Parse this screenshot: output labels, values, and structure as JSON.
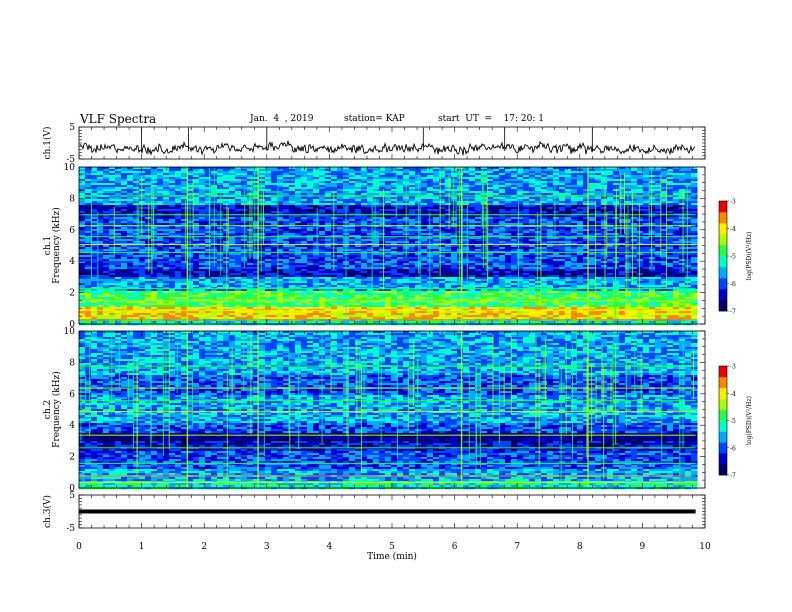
{
  "header": {
    "title": "VLF Spectra",
    "date": "Jan.  4  , 2019",
    "station": "station= KAP",
    "start_ut": "start  UT  =    17: 20: 1"
  },
  "colors": {
    "waveform": "#000000",
    "colormap": [
      "#000066",
      "#0000cc",
      "#0044ff",
      "#00aaff",
      "#00ffcc",
      "#22ff44",
      "#aaff00",
      "#ffee00",
      "#ff8800",
      "#ee0000"
    ]
  },
  "chart_data": [
    {
      "type": "line",
      "panel": "ch1-waveform",
      "ylabel": "ch.1(V)",
      "ylim": [
        -5,
        5
      ],
      "yticks": [
        5,
        -5
      ],
      "xlim": [
        0,
        10
      ],
      "description_values": {
        "y_center": -1.5,
        "y_amplitude": 2.0
      }
    },
    {
      "type": "heatmap",
      "panel": "ch1-spectrogram",
      "ylabel": "ch.1\nFrequency  (kHz)",
      "ylim": [
        0,
        10
      ],
      "yticks": [
        0,
        2,
        4,
        6,
        8,
        10
      ],
      "xlim": [
        0,
        10
      ],
      "data_end_min": 9.85,
      "colorbar": {
        "label": "log(PSD)(V²/Hz)",
        "range": [
          -7,
          -3
        ],
        "ticks": [
          "-3",
          "-4",
          "-5",
          "-6",
          "-7"
        ]
      }
    },
    {
      "type": "heatmap",
      "panel": "ch2-spectrogram",
      "ylabel": "ch.2\nFrequency  (kHz)",
      "ylim": [
        0,
        10
      ],
      "yticks": [
        0,
        2,
        4,
        6,
        8,
        10
      ],
      "xlim": [
        0,
        10
      ],
      "data_end_min": 9.85,
      "colorbar": {
        "label": "log(PSD)(V²/Hz)",
        "range": [
          -7,
          -3
        ],
        "ticks": [
          "-3",
          "-4",
          "-5",
          "-6",
          "-7"
        ]
      }
    },
    {
      "type": "line",
      "panel": "ch3-waveform",
      "ylabel": "ch.3(V)",
      "ylim": [
        -5,
        5
      ],
      "yticks": [
        5,
        -5
      ],
      "xlim": [
        0,
        10
      ],
      "constant_value": 0
    }
  ],
  "x_axis": {
    "label": "Time  (min)",
    "ticks": [
      "0",
      "1",
      "2",
      "3",
      "4",
      "5",
      "6",
      "7",
      "8",
      "9",
      "10"
    ]
  }
}
